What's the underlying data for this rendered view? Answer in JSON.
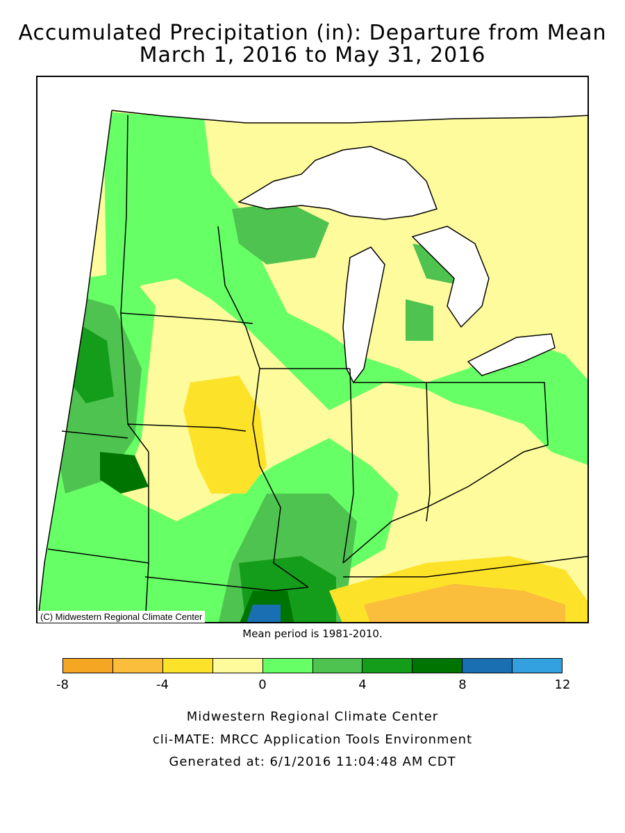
{
  "map": {
    "title_line1": "Accumulated Precipitation (in): Departure from Mean",
    "title_line2": "March 1, 2016 to May 31, 2016",
    "copyright": "(C) Midwestern Regional Climate Center",
    "mean_note": "Mean period is 1981-2010.",
    "region": "Midwest"
  },
  "legend": {
    "unit": "in",
    "breaks": [
      -8,
      -6,
      -4,
      -2,
      0,
      2,
      4,
      6,
      8,
      10,
      12
    ],
    "tick_labels": [
      "-8",
      "-4",
      "0",
      "4",
      "8",
      "12"
    ],
    "tick_values": [
      -8,
      -4,
      0,
      4,
      8,
      12
    ],
    "colors": [
      "#f5a623",
      "#fbbd3c",
      "#fde22a",
      "#fefb9c",
      "#66ff66",
      "#4fc34f",
      "#149d1a",
      "#007400",
      "#1a6fb3",
      "#33a0e0"
    ]
  },
  "footer": {
    "line1": "Midwestern Regional Climate Center",
    "line2": "cli-MATE: MRCC Application Tools Environment",
    "line3": "Generated at: 6/1/2016 11:04:48 AM CDT"
  }
}
